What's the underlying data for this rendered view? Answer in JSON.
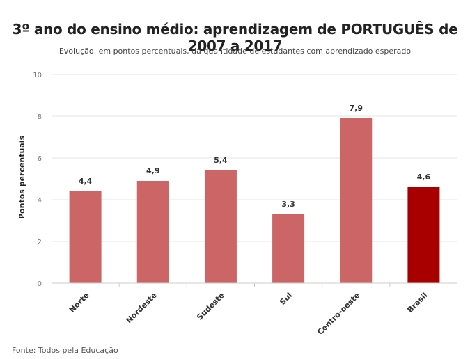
{
  "chart_data": {
    "type": "bar",
    "title": "3º ano do ensino médio: aprendizagem de PORTUGUÊS de 2007 a 2017",
    "subtitle": "Evolução, em pontos percentuais, da quantidade de estudantes com aprendizado esperado",
    "ylabel": "Pontos percentuais",
    "xlabel": "",
    "ylim": [
      0,
      10
    ],
    "yticks": [
      0,
      2,
      4,
      6,
      8,
      10
    ],
    "categories": [
      "Norte",
      "Nordeste",
      "Sudeste",
      "Sul",
      "Centro-oeste",
      "Brasil"
    ],
    "values": [
      4.4,
      4.9,
      5.4,
      3.3,
      7.9,
      4.6
    ],
    "value_labels": [
      "4,4",
      "4,9",
      "5,4",
      "3,3",
      "7,9",
      "4,6"
    ],
    "colors": [
      "#cc6666",
      "#cc6666",
      "#cc6666",
      "#cc6666",
      "#cc6666",
      "#a80000"
    ],
    "grid": true,
    "source": "Fonte: Todos pela Educação"
  }
}
